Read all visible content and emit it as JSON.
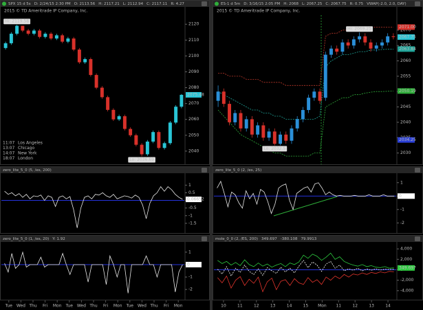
{
  "chart_data": [
    {
      "type": "candlestick",
      "header": [
        {
          "text": "SPX 15 d 5s",
          "color": "#dddddd"
        },
        {
          "text": "D: 2/24/15 2:30 PM",
          "color": "#dddddd"
        },
        {
          "text": "O: 2113.56",
          "color": "#dddddd"
        },
        {
          "text": "H: 2117.21",
          "color": "#dddddd"
        },
        {
          "text": "L: 2112.94",
          "color": "#dddddd"
        },
        {
          "text": "C: 2117.11",
          "color": "#dddddd"
        },
        {
          "text": "R: 4.27",
          "color": "#dddddd"
        }
      ],
      "subtitle": "2015 © TD Ameritrade IP Company, Inc.",
      "open": [
        2105,
        2108,
        2114,
        2119,
        2116,
        2114,
        2116,
        2112,
        2114,
        2111,
        2113,
        2109,
        2111,
        2104,
        2096,
        2098,
        2088,
        2080,
        2074,
        2066,
        2060,
        2062,
        2054,
        2050,
        2044,
        2038,
        2046,
        2052,
        2042,
        2045,
        2058,
        2068
      ],
      "high": [
        2109,
        2115,
        2119.58,
        2119,
        2117,
        2117,
        2117,
        2115,
        2115,
        2114,
        2114,
        2112,
        2112,
        2105,
        2099,
        2099,
        2089,
        2081,
        2075,
        2067,
        2063,
        2063,
        2055,
        2051,
        2045,
        2047,
        2053,
        2053,
        2046,
        2059,
        2069,
        2076
      ],
      "low": [
        2104,
        2107,
        2113,
        2115,
        2113,
        2113,
        2111,
        2111,
        2110,
        2110,
        2108,
        2108,
        2103,
        2095,
        2095,
        2087,
        2079,
        2073,
        2065,
        2059,
        2059,
        2053,
        2049,
        2043,
        2036.69,
        2037,
        2045,
        2041,
        2041,
        2044,
        2057,
        2067
      ],
      "close": [
        2108,
        2114,
        2119,
        2116,
        2114,
        2116,
        2112,
        2114,
        2111,
        2113,
        2109,
        2111,
        2104,
        2096,
        2098,
        2088,
        2080,
        2074,
        2066,
        2060,
        2062,
        2054,
        2050,
        2044,
        2038,
        2046,
        2052,
        2042,
        2045,
        2058,
        2068,
        2075.48
      ],
      "up_color": "#29c5d6",
      "down_color": "#d8312a",
      "hi_label": "Hi: 2119.58",
      "lo_label": "Lo: 2036.69",
      "ylim": [
        2033,
        2124
      ],
      "yticks": [
        2040,
        2050,
        2060,
        2070,
        2080,
        2090,
        2100,
        2110,
        2120
      ],
      "price_markers": [
        {
          "value": 2075.48,
          "color": "#29c5d6"
        }
      ],
      "clocks": [
        {
          "time": "11:07",
          "city": "Los Angeles"
        },
        {
          "time": "13:07",
          "city": "Chicago"
        },
        {
          "time": "14:07",
          "city": "New York"
        },
        {
          "time": "18:07",
          "city": "London"
        }
      ],
      "x_labels": [
        "Tue",
        "Wed",
        "Thu",
        "Fri",
        "Mon",
        "Tue",
        "Wed",
        "Thu",
        "Fri",
        "Mon",
        "Tue",
        "Wed",
        "Thu",
        "Fri",
        "Mon"
      ]
    },
    {
      "type": "candlestick",
      "header": [
        {
          "text": "ES-1 d 5m",
          "color": "#dddddd"
        },
        {
          "text": "D: 3/16/15 2:05 PM",
          "color": "#dddddd"
        },
        {
          "text": "H: 2068",
          "color": "#dddddd"
        },
        {
          "text": "L: 2067.25",
          "color": "#dddddd"
        },
        {
          "text": "C: 2067.75",
          "color": "#dddddd"
        },
        {
          "text": "R: 0.75",
          "color": "#dddddd"
        },
        {
          "text": "VWAP(-2.0, 2.0, DAY)",
          "color": "#29c5d6"
        }
      ],
      "subtitle": "2015 © TD Ameritrade IP Company, Inc.",
      "open": [
        2047,
        2050,
        2046,
        2040,
        2043,
        2038,
        2041,
        2036,
        2039,
        2035,
        2037,
        2033,
        2036,
        2034,
        2038,
        2041,
        2044,
        2048,
        2050,
        2048,
        2062,
        2064,
        2063,
        2066,
        2065,
        2067,
        2068,
        2066,
        2064,
        2065,
        2066,
        2068
      ],
      "high": [
        2052,
        2051,
        2047,
        2044,
        2044,
        2042,
        2042,
        2040,
        2040,
        2038,
        2038,
        2037,
        2037,
        2039,
        2042,
        2045,
        2049,
        2051,
        2051,
        2063,
        2065,
        2065,
        2067,
        2067,
        2068,
        2069.25,
        2069,
        2067,
        2066,
        2067,
        2069,
        2069
      ],
      "low": [
        2045,
        2045,
        2039,
        2039,
        2037,
        2037,
        2035,
        2035,
        2034,
        2034,
        2032.5,
        2032.5,
        2033,
        2033,
        2037,
        2040,
        2043,
        2047,
        2046,
        2047,
        2061,
        2062,
        2062,
        2064,
        2064,
        2066,
        2065,
        2063,
        2063,
        2064,
        2065,
        2067
      ],
      "close": [
        2050,
        2046,
        2040,
        2043,
        2038,
        2041,
        2036,
        2039,
        2035,
        2037,
        2033,
        2036,
        2034,
        2038,
        2041,
        2044,
        2048,
        2050,
        2047,
        2062,
        2064,
        2063,
        2066,
        2065,
        2067,
        2068,
        2066,
        2064,
        2065,
        2066,
        2068,
        2067.75
      ],
      "up_color": "#2a8fd8",
      "down_color": "#d8312a",
      "hi_label": "Hi: 2069.25",
      "lo_label": "Lo: 2032.5",
      "overlays": [
        {
          "color": "#c0392b",
          "values": [
            2056,
            2056,
            2055,
            2055,
            2055,
            2054,
            2054,
            2054,
            2053,
            2053,
            2053,
            2053,
            2052,
            2052,
            2052,
            2052,
            2052,
            2052,
            2052,
            2068,
            2069,
            2069,
            2070,
            2070,
            2070,
            2070.5,
            2071,
            2071,
            2071,
            2071,
            2071,
            2071
          ]
        },
        {
          "color": "#1fa59a",
          "values": [
            2050,
            2049,
            2048,
            2047,
            2046,
            2045,
            2044,
            2044,
            2043,
            2043,
            2042,
            2042,
            2041,
            2041,
            2041,
            2041,
            2041,
            2041,
            2042,
            2058,
            2060,
            2061,
            2062,
            2062,
            2062.5,
            2063,
            2063,
            2063.5,
            2063.5,
            2063.7,
            2063.8,
            2063.84
          ]
        },
        {
          "color": "#2fae3a",
          "values": [
            2044,
            2042,
            2040,
            2038,
            2036,
            2035,
            2034,
            2033,
            2032,
            2031,
            2030,
            2030,
            2029,
            2029,
            2029,
            2029,
            2029,
            2030,
            2030,
            2045,
            2046,
            2047,
            2048,
            2048,
            2049,
            2049,
            2049.5,
            2049.8,
            2050,
            2050,
            2050.1,
            2050.19
          ]
        }
      ],
      "ylim": [
        2027,
        2074
      ],
      "yticks": [
        2030,
        2035,
        2040,
        2045,
        2050,
        2055,
        2060,
        2065,
        2070
      ],
      "price_markers": [
        {
          "value": 2071,
          "label": "2071.00",
          "color": "#d8312a"
        },
        {
          "value": 2067.75,
          "color": "#29c5d6"
        },
        {
          "value": 2063.84,
          "color": "#1fa59a"
        },
        {
          "value": 2050.19,
          "color": "#2fae3a"
        },
        {
          "value": 2034.25,
          "color": "#2a3fd8"
        }
      ],
      "x_labels": [
        "10",
        "11",
        "12",
        "13",
        "14",
        "15",
        "Mon",
        "11",
        "12",
        "13",
        "14"
      ]
    },
    {
      "type": "line",
      "header": [
        {
          "text": "zero_lite_5_0 (5, /es, 200)",
          "color": "#dddddd"
        }
      ],
      "zero_line": true,
      "zero_color": "#2633e0",
      "series": [
        {
          "color": "#e8e8e8",
          "values": [
            0.6,
            0.4,
            0.5,
            0.3,
            0.45,
            0.2,
            0.4,
            0.1,
            0.3,
            0.25,
            0.35,
            0.0,
            0.3,
            0.2,
            -0.4,
            0.2,
            0.3,
            0.1,
            0.25,
            -0.6,
            -1.8,
            -0.5,
            0.2,
            0.3,
            0.1,
            0.4,
            0.35,
            0.5,
            0.3,
            0.2,
            0.4,
            0.1,
            0.2,
            0.3,
            0.25,
            0.15,
            0.35,
            0.2,
            -0.3,
            -1.2,
            -0.2,
            0.3,
            0.5,
            0.9,
            0.6,
            0.9,
            0.7,
            0.4,
            0.2,
            0.07
          ]
        }
      ],
      "ylim": [
        -2.0,
        1.6
      ],
      "yticks": [
        1,
        0.5,
        0,
        -0.5,
        -1,
        -1.5
      ],
      "price_markers": [
        {
          "value": 0.06652,
          "color": "#ffffff"
        }
      ]
    },
    {
      "type": "line",
      "header": [
        {
          "text": "zero_lite_5_0 (2, /es, 25)",
          "color": "#dddddd"
        }
      ],
      "zero_line": true,
      "zero_color": "#2633e0",
      "series": [
        {
          "color": "#e8e8e8",
          "values": [
            0.6,
            1.1,
            0.2,
            -0.8,
            0.3,
            0.1,
            -0.5,
            -0.9,
            0.4,
            -0.2,
            0.2,
            -0.6,
            0.5,
            0.3,
            -0.4,
            -1.3,
            -0.6,
            0.6,
            0.8,
            0.9,
            -0.3,
            -1.0,
            0.2,
            0.4,
            0.6,
            0.7,
            0.3,
            0.9,
            1.0,
            0.6,
            0.1,
            0.3,
            0.1,
            0.0,
            0.05,
            0.0,
            0.0,
            0.0,
            0.05,
            0.0,
            0.0,
            0.0,
            0.1,
            0.0,
            0.0,
            0.0,
            0.1,
            0.0,
            0.0,
            0.0
          ]
        }
      ],
      "ylim": [
        -2.6,
        1.5
      ],
      "yticks": [
        1,
        0,
        -1,
        -2
      ],
      "price_markers": [
        {
          "value": 0,
          "color": "#ffffff"
        }
      ]
    },
    {
      "type": "line",
      "header": [
        {
          "text": "zero_lite_5_0 (1, /es, 20)",
          "color": "#dddddd"
        },
        {
          "text": "Y: 1.92",
          "color": "#dddddd"
        }
      ],
      "zero_line": true,
      "zero_color": "#2633e0",
      "series": [
        {
          "color": "#e8e8e8",
          "values": [
            0.1,
            -0.6,
            0.9,
            -0.3,
            0.0,
            1.0,
            -0.2,
            0.0,
            0.0,
            0.0,
            0.6,
            -0.2,
            0.0,
            0.0,
            0.0,
            0.0,
            0.9,
            0.0,
            -0.8,
            0.0,
            0.0,
            0.0,
            0.0,
            -1.4,
            0.0,
            0.0,
            0.0,
            0.0,
            -1.6,
            0.7,
            0.0,
            -1.0,
            0.0,
            0.0,
            -2.3,
            0.0,
            0.0,
            0.0,
            0.0,
            0.7,
            0.0,
            0.0,
            -1.0,
            0.0,
            0.0,
            0.0,
            0.0,
            -2.2,
            -0.6,
            0.0
          ]
        }
      ],
      "ylim": [
        -2.6,
        1.6
      ],
      "yticks": [
        1,
        0,
        -1,
        -2
      ],
      "price_markers": [
        {
          "value": 0,
          "color": "#ffffff"
        }
      ]
    },
    {
      "type": "line",
      "header": [
        {
          "text": "mole_0_0 (2, /ES, 200)",
          "color": "#dddddd"
        },
        {
          "value": 349.697,
          "color": "#2ecc40"
        },
        {
          "value": -380.108,
          "color": "#e0342c"
        },
        {
          "value": 79.9913,
          "color": "#ffffff"
        }
      ],
      "zero_line": true,
      "zero_color": "#2633e0",
      "series": [
        {
          "color": "#2ecc40",
          "values": [
            1800,
            1200,
            1600,
            900,
            1400,
            800,
            1900,
            1000,
            600,
            1300,
            700,
            1100,
            500,
            900,
            1200,
            600,
            1300,
            1000,
            1500,
            2800,
            2200,
            3000,
            2600,
            1800,
            2400,
            3200,
            2000,
            2500,
            1600,
            1200,
            900,
            700,
            1000,
            600,
            800,
            500,
            400,
            600,
            300,
            349.697
          ]
        },
        {
          "color": "#e0342c",
          "values": [
            -1500,
            -2500,
            -1200,
            -3500,
            -2000,
            -1300,
            -3000,
            -1800,
            -2600,
            -1400,
            -4200,
            -2300,
            -1600,
            -3800,
            -2200,
            -1900,
            -3000,
            -1700,
            -2500,
            -2800,
            -1500,
            -2400,
            -1900,
            -2800,
            -1400,
            -2000,
            -1200,
            -1700,
            -900,
            -1400,
            -800,
            -1000,
            -600,
            -900,
            -500,
            -700,
            -400,
            -600,
            -300,
            -380.108
          ]
        },
        {
          "color": "#ffffff",
          "dashed": true,
          "values": [
            100,
            -800,
            600,
            -1200,
            300,
            -500,
            900,
            -300,
            -900,
            200,
            -1100,
            400,
            -200,
            -700,
            500,
            -400,
            300,
            -600,
            700,
            1800,
            400,
            1500,
            900,
            -300,
            1100,
            1600,
            300,
            900,
            -200,
            200,
            -100,
            300,
            -200,
            150,
            -100,
            200,
            -50,
            120,
            60,
            79.9913
          ]
        }
      ],
      "ylim": [
        -5200,
        4800
      ],
      "yticks": [
        {
          "value": 4000,
          "label": "4,000"
        },
        {
          "value": 2000,
          "label": "2,000"
        },
        0,
        {
          "value": -2000,
          "label": "-2,000"
        },
        {
          "value": -4000,
          "label": "-4,000"
        }
      ],
      "price_markers": [
        {
          "value": 349.697,
          "color": "#2ecc40"
        }
      ]
    }
  ]
}
